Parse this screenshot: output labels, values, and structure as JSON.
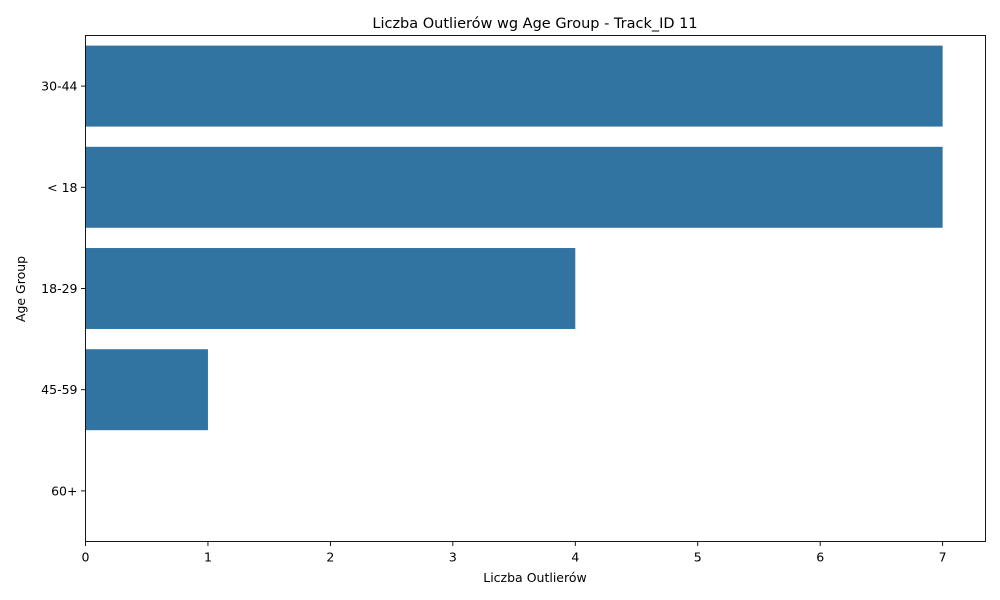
{
  "chart_data": {
    "type": "bar",
    "orientation": "horizontal",
    "title": "Liczba Outlierów wg Age Group - Track_ID 11",
    "xlabel": "Liczba Outlierów",
    "ylabel": "Age Group",
    "categories": [
      "30-44",
      "< 18",
      "18-29",
      "45-59",
      "60+"
    ],
    "values": [
      7,
      7,
      4,
      1,
      0
    ],
    "xlim": [
      0,
      7.35
    ],
    "xticks": [
      0,
      1,
      2,
      3,
      4,
      5,
      6,
      7
    ],
    "grid": false,
    "bar_color": "#3274a1"
  }
}
